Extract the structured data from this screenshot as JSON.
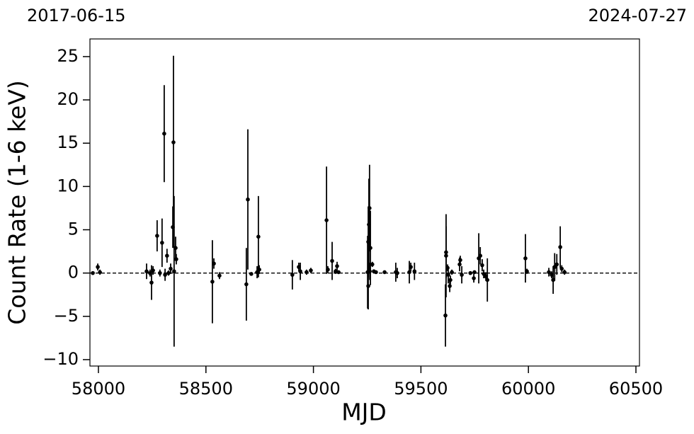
{
  "chart_data": {
    "type": "errorbar",
    "xlabel": "MJD",
    "ylabel": "Count Rate (1-6 keV)",
    "top_left_label": "2017-06-15",
    "top_right_label": "2024-07-27",
    "color": "#000000",
    "hline": 0,
    "xlim": [
      57960.5,
      60516.5
    ],
    "ylim": [
      -10.74,
      27.04
    ],
    "xticks": [
      58000,
      58500,
      59000,
      59500,
      60000,
      60500
    ],
    "yticks": [
      {
        "value": -10,
        "label": "−10"
      },
      {
        "value": -5,
        "label": "−5"
      },
      0,
      5,
      10,
      15,
      20,
      25
    ],
    "x": [
      57974,
      57997,
      58007,
      58224,
      58240,
      58247,
      58254,
      58273,
      58286,
      58296,
      58306,
      58310,
      58319,
      58326,
      58336,
      58346,
      58349,
      58352,
      58359,
      58362,
      58530,
      58537,
      58563,
      58688,
      58695,
      58711,
      58738,
      58744,
      58748,
      58902,
      58932,
      58939,
      58968,
      58988,
      59061,
      59067,
      59087,
      59103,
      59110,
      59117,
      59252,
      59255,
      59258,
      59261,
      59265,
      59255,
      59262,
      59274,
      59281,
      59291,
      59331,
      59383,
      59390,
      59446,
      59453,
      59470,
      59614,
      59617,
      59617,
      59624,
      59627,
      59634,
      59637,
      59644,
      59680,
      59683,
      59690,
      59730,
      59746,
      59749,
      59769,
      59776,
      59785,
      59792,
      59802,
      59809,
      59986,
      59993,
      60095,
      60108,
      60115,
      60122,
      60132,
      60148,
      60155,
      60168
    ],
    "values": [
      0,
      0.7,
      0.1,
      0.2,
      0,
      -1.1,
      0.3,
      4.3,
      0,
      3.5,
      16.1,
      -0.2,
      2.0,
      0,
      0.5,
      5.3,
      15.1,
      0.2,
      2.9,
      1.6,
      -1.0,
      1.1,
      -0.3,
      -1.3,
      8.5,
      -0.1,
      0.1,
      4.2,
      0.4,
      -0.2,
      0.7,
      0.2,
      0.1,
      0.3,
      6.1,
      0.4,
      1.4,
      0.2,
      0.8,
      0.1,
      0.1,
      3.6,
      5.6,
      7.5,
      2.9,
      -1.5,
      0.2,
      1.0,
      0.2,
      0.1,
      0.1,
      0.1,
      0,
      0.1,
      0.7,
      0.2,
      -4.9,
      2.4,
      2.0,
      0.6,
      -0.2,
      -1.5,
      -0.8,
      0.1,
      1.0,
      1.5,
      -0.2,
      0,
      -0.6,
      0.1,
      1.7,
      2.0,
      0.9,
      -0.1,
      -0.4,
      -0.8,
      1.7,
      0.2,
      0.1,
      -0.2,
      -0.8,
      0.7,
      1.0,
      3.0,
      0.5,
      0.1
    ],
    "errors": [
      0.1,
      0.4,
      0.3,
      0.9,
      0.4,
      2.0,
      0.5,
      1.8,
      0.4,
      2.8,
      5.6,
      0.7,
      0.8,
      0.3,
      0.6,
      2.4,
      10,
      8.7,
      1.3,
      0.6,
      4.8,
      0.6,
      0.4,
      4.2,
      8.1,
      0.2,
      0.7,
      4.7,
      0.5,
      1.7,
      0.5,
      1.0,
      0.3,
      0.3,
      6.2,
      0.4,
      2.2,
      0.3,
      0.5,
      0.2,
      4.2,
      4.1,
      5.3,
      5.0,
      4.3,
      2.7,
      1.0,
      0.3,
      0.2,
      0.2,
      0.2,
      1.1,
      0.6,
      1.3,
      0.5,
      1.0,
      3.6,
      3.0,
      4.8,
      0.4,
      1.0,
      0.7,
      0.5,
      0.3,
      0.8,
      0.5,
      1.0,
      0.2,
      0.5,
      0.2,
      2.9,
      1.0,
      0.7,
      0.5,
      0.5,
      2.5,
      2.8,
      0.3,
      0.5,
      0.4,
      1.6,
      1.6,
      1.2,
      2.4,
      0.4,
      0.3
    ]
  }
}
